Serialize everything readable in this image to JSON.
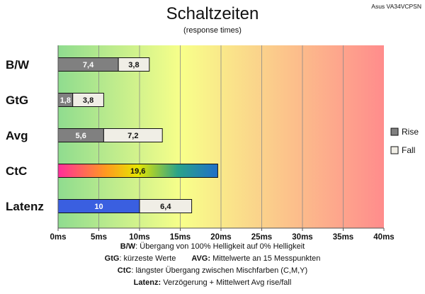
{
  "chart_data": {
    "type": "bar",
    "orientation": "horizontal",
    "stacked": true,
    "title": "Schaltzeiten",
    "subtitle": "(response times)",
    "model": "Asus VA34VCPSN",
    "categories": [
      "B/W",
      "GtG",
      "Avg",
      "CtC",
      "Latenz"
    ],
    "series": [
      {
        "name": "Rise",
        "color": "#808080",
        "values": [
          7.4,
          1.8,
          5.6,
          null,
          10
        ]
      },
      {
        "name": "Fall",
        "color": "#f0eee6",
        "values": [
          3.8,
          3.8,
          7.2,
          null,
          6.4
        ]
      }
    ],
    "ctc": {
      "value": 19.6,
      "label": "19,6"
    },
    "latenz_color": "#3a5fe0",
    "bar_labels": [
      [
        "7,4",
        "3,8"
      ],
      [
        "1,8",
        "3,8"
      ],
      [
        "5,6",
        "7,2"
      ],
      [
        "19,6"
      ],
      [
        "10",
        "6,4"
      ]
    ],
    "xlim": [
      0,
      40
    ],
    "xticks": [
      0,
      5,
      10,
      15,
      20,
      25,
      30,
      35,
      40
    ],
    "xtick_labels": [
      "0ms",
      "5ms",
      "10ms",
      "15ms",
      "20ms",
      "25ms",
      "30ms",
      "35ms",
      "40ms"
    ],
    "grid": true,
    "legend_position": "right",
    "background_gradient": [
      "#8fdc8f",
      "#f8ff8a",
      "#ff9090"
    ]
  },
  "notes": {
    "bw_key": "B/W",
    "bw_text": ":  Übergang von 100% Helligkeit auf 0% Helligkeit",
    "gtg_key": "GtG",
    "gtg_text": ": kürzeste  Werte",
    "avg_key": "AVG:",
    "avg_text": " Mittelwerte  an 15 Messpunkten",
    "ctc_key": "CtC",
    "ctc_text": ": längster Übergang  zwischen Mischfarben  (C,M,Y)",
    "latenz_key": "Latenz:",
    "latenz_text": " Verzögerung  + Mittelwert  Avg rise/fall"
  }
}
